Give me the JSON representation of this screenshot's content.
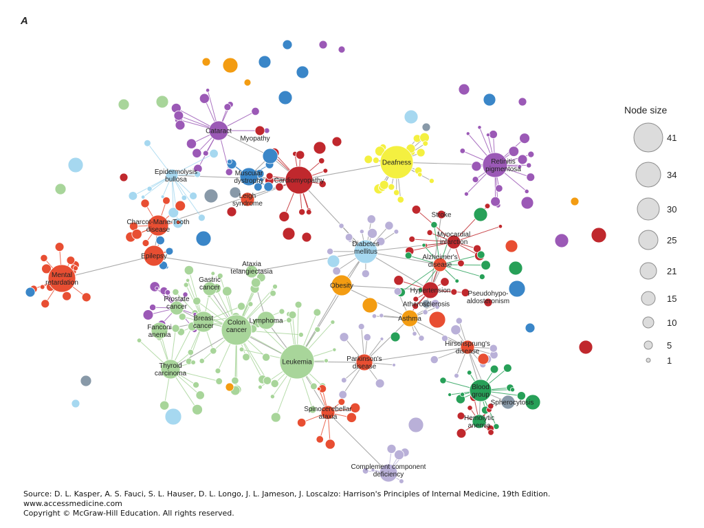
{
  "panel_letter": "A",
  "legend": {
    "title": "Node size",
    "sizes": [
      "41",
      "34",
      "30",
      "25",
      "21",
      "15",
      "10",
      "5",
      "1"
    ]
  },
  "colors": {
    "edge": "#9a9a9a",
    "purple": "#9b59b6",
    "orange": "#f39c12",
    "blue": "#3a86c8",
    "lightblue": "#a6d8f0",
    "red": "#c0282d",
    "lightgreen": "#a8d59a",
    "green": "#27a058",
    "yellow": "#f4f040",
    "gray": "#8899a8",
    "lavender": "#b9b0d8",
    "orangered": "#e84e32"
  },
  "labels": {
    "cataract": "Cataract",
    "deafness": "Deafness",
    "retinitis": [
      "Retinitis",
      "pigmentosa"
    ],
    "myopathy": "Myopathy",
    "muscular": [
      "Muscular",
      "dystrophy"
    ],
    "cardiomyopathy": "Cardiomyopathy",
    "epidermolysis": [
      "Epidermolysis",
      "bullosa"
    ],
    "leigh": [
      "Leigh",
      "syndrome"
    ],
    "charcot": [
      "Charcot-Marie-Tooth",
      "disease"
    ],
    "stroke": "Stroke",
    "myocardial": [
      "Myocardial",
      "infarction"
    ],
    "diabetes": [
      "Diabetes",
      "mellitus"
    ],
    "alzheimers": [
      "Alzheimer's",
      "disease"
    ],
    "epilepsy": "Epilepsy",
    "mental": [
      "Mental",
      "retardation"
    ],
    "ataxia": [
      "Ataxia",
      "telangiectasia"
    ],
    "obesity": "Obesity",
    "hypertension": "Hypertension",
    "pseudo": [
      "Pseudohypo-",
      "aldosteronism"
    ],
    "gastric": [
      "Gastric",
      "cancer"
    ],
    "prostate": [
      "Prostate",
      "cancer"
    ],
    "atherosclerosis": "Atherosclerosis",
    "breast": [
      "Breast",
      "cancer"
    ],
    "lymphoma": "Lymphoma",
    "fanconi": [
      "Fanconi",
      "anemia"
    ],
    "colon": [
      "Colon",
      "cancer"
    ],
    "asthma": "Asthma",
    "hirschsprung": [
      "Hirschsprung's",
      "disease"
    ],
    "thyroid": [
      "Thyroid",
      "carcinoma"
    ],
    "leukemia": "Leukemia",
    "parkinsons": [
      "Parkinson's",
      "disease"
    ],
    "bloodgroup": [
      "Blood",
      "group"
    ],
    "spherocytosis": "Spherocytosis",
    "spinocerebellar": [
      "Spinocerebellar",
      "ataxia"
    ],
    "hemolytic": [
      "Hemolytic",
      "anemia"
    ],
    "complement": [
      "Complement component",
      "deficiency"
    ]
  },
  "footer": {
    "source": "Source: D. L. Kasper, A. S. Fauci, S. L. Hauser, D. L. Longo, J. L. Jameson, J. Loscalzo: Harrison's Principles of Internal Medicine, 19th Edition.",
    "url": "www.accessmedicine.com",
    "copyright": "Copyright © McGraw-Hill Education.  All rights reserved."
  }
}
